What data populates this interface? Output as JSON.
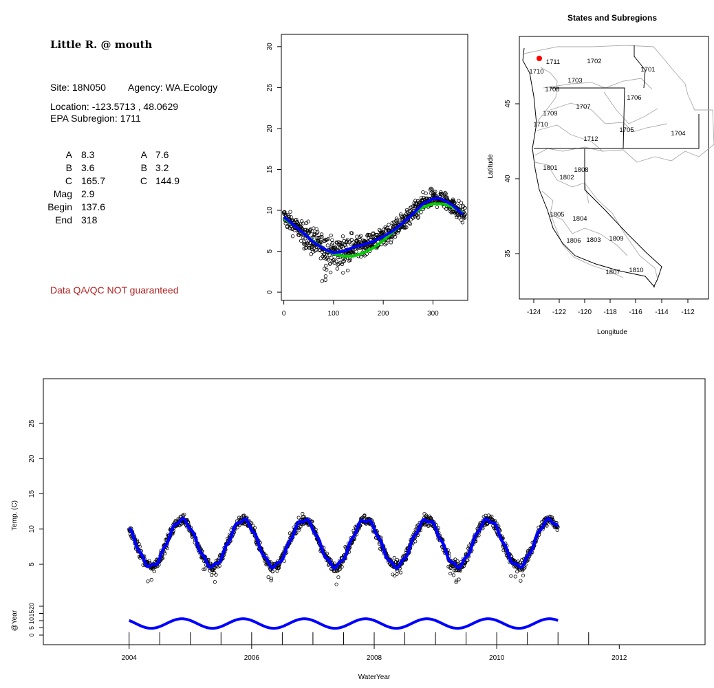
{
  "info": {
    "title": "Little R. @ mouth",
    "site": "Site: 18N050",
    "agency": "Agency: WA.Ecology",
    "location": "Location: -123.5713 , 48.0629",
    "subregion": "EPA Subregion: 1711",
    "params_left": [
      {
        "label": "A",
        "value": "8.3"
      },
      {
        "label": "B",
        "value": "3.6"
      },
      {
        "label": "C",
        "value": "165.7"
      },
      {
        "label": "Mag",
        "value": "2.9"
      },
      {
        "label": "Begin",
        "value": "137.6"
      },
      {
        "label": "End",
        "value": "318"
      }
    ],
    "params_right": [
      {
        "label": "A",
        "value": "7.6"
      },
      {
        "label": "B",
        "value": "3.2"
      },
      {
        "label": "C",
        "value": "144.9"
      }
    ],
    "qa_note": "Data QA/QC NOT guaranteed"
  },
  "chart_data": [
    {
      "type": "scatter",
      "name": "day-of-year",
      "xlim": [
        -5,
        370
      ],
      "ylim": [
        -1,
        31.5
      ],
      "x_ticks": [
        0,
        100,
        200,
        300
      ],
      "y_ticks": [
        0,
        5,
        10,
        15,
        20,
        25,
        30
      ],
      "series": [
        {
          "color": "#0000ff",
          "x": [
            0,
            20,
            40,
            60,
            80,
            100,
            120,
            140,
            160,
            180,
            200,
            220,
            240,
            260,
            280,
            300,
            310,
            320,
            340,
            360
          ],
          "y": [
            9.2,
            8.2,
            7.2,
            6.1,
            5.3,
            4.8,
            5.0,
            5.5,
            5.8,
            6.2,
            6.8,
            7.5,
            8.5,
            9.6,
            10.8,
            11.4,
            11.5,
            11.3,
            10.6,
            9.5
          ]
        },
        {
          "color": "#00cc00",
          "x": [
            0,
            20,
            40,
            60,
            80,
            100,
            120,
            140,
            160,
            180,
            200,
            220,
            240,
            260,
            280,
            300,
            320,
            340,
            360
          ],
          "y": [
            9.0,
            8.2,
            7.2,
            6.2,
            5.3,
            4.7,
            4.4,
            4.4,
            4.8,
            5.4,
            6.3,
            7.4,
            8.5,
            9.6,
            10.4,
            10.8,
            10.8,
            10.4,
            9.7
          ]
        }
      ],
      "points_note": "daily temperature observations overplotted as open circles"
    },
    {
      "type": "line",
      "name": "time-series",
      "title": "States and Subregions",
      "xlabel": "WaterYear",
      "ylabel": "Temp. (C)",
      "xlim": [
        2002.6,
        2013.4
      ],
      "ylim": [
        0,
        30
      ],
      "x_ticks": [
        2004,
        2006,
        2008,
        2010,
        2012
      ],
      "y_ticks": [
        5,
        10,
        15,
        20,
        25
      ],
      "series": [
        {
          "color": "#0000ff",
          "note": "smoothed daily temperature; seasonal maxima ~11.5 near Nov, minima ~5 near Apr",
          "x": [
            2004.0,
            2011.0
          ],
          "y": [
            10.8,
            9.8
          ]
        }
      ],
      "year_panel": {
        "ylabel": "@Year",
        "y_ticks": [
          0,
          5,
          10,
          15,
          20
        ],
        "x": [
          2004.0,
          2011.0
        ]
      }
    }
  ],
  "map": {
    "title": "States and Subregions",
    "xlabel": "Longitude",
    "ylabel": "Latitude",
    "x_ticks": [
      "-124",
      "-122",
      "-120",
      "-118",
      "-116",
      "-114",
      "-112"
    ],
    "y_ticks": [
      "35",
      "40",
      "45"
    ],
    "regions": [
      "1711",
      "1702",
      "1701",
      "1710",
      "1708",
      "1703",
      "1706",
      "1707",
      "1709",
      "1710",
      "1705",
      "1704",
      "1712",
      "1801",
      "1808",
      "1802",
      "1805",
      "1804",
      "1803",
      "1809",
      "1806",
      "1807",
      "1810"
    ],
    "site_color": "#ff0000"
  }
}
